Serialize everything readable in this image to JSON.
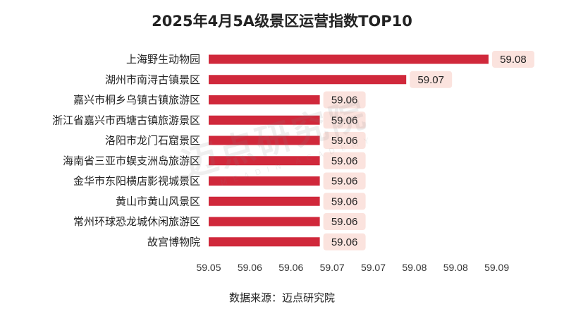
{
  "colors": {
    "bar": "#d0283b",
    "label_bg": "#fbe3de",
    "text": "#222222"
  },
  "watermark": {
    "text_cn": "迈点研究院",
    "text_en": "MEADIN ACADEMY"
  },
  "footer": {
    "source": "数据来源：迈点研究院"
  },
  "chart_data": {
    "type": "bar",
    "orientation": "horizontal",
    "title": "2025年4月5A级景区运营指数TOP10",
    "categories": [
      "上海野生动物园",
      "湖州市南浔古镇景区",
      "嘉兴市桐乡乌镇古镇旅游区",
      "浙江省嘉兴市西塘古镇旅游景区",
      "洛阳市龙门石窟景区",
      "海南省三亚市蜈支洲岛旅游区",
      "金华市东阳横店影视城景区",
      "黄山市黄山风景区",
      "常州环球恐龙城休闲旅游区",
      "故宫博物院"
    ],
    "values": [
      59.084,
      59.074,
      59.0635,
      59.0635,
      59.0635,
      59.0635,
      59.0635,
      59.0635,
      59.0635,
      59.0635
    ],
    "value_labels": [
      "59.08",
      "59.07",
      "59.06",
      "59.06",
      "59.06",
      "59.06",
      "59.06",
      "59.06",
      "59.06",
      "59.06"
    ],
    "xlim": [
      59.05,
      59.09
    ],
    "xticks": [
      59.05,
      59.055,
      59.06,
      59.065,
      59.07,
      59.075,
      59.08,
      59.085
    ],
    "xtick_labels": [
      "59.05",
      "59.06",
      "59.06",
      "59.07",
      "59.07",
      "59.08",
      "59.08",
      "59.09"
    ],
    "xlabel": "",
    "ylabel": "",
    "grid": false
  }
}
